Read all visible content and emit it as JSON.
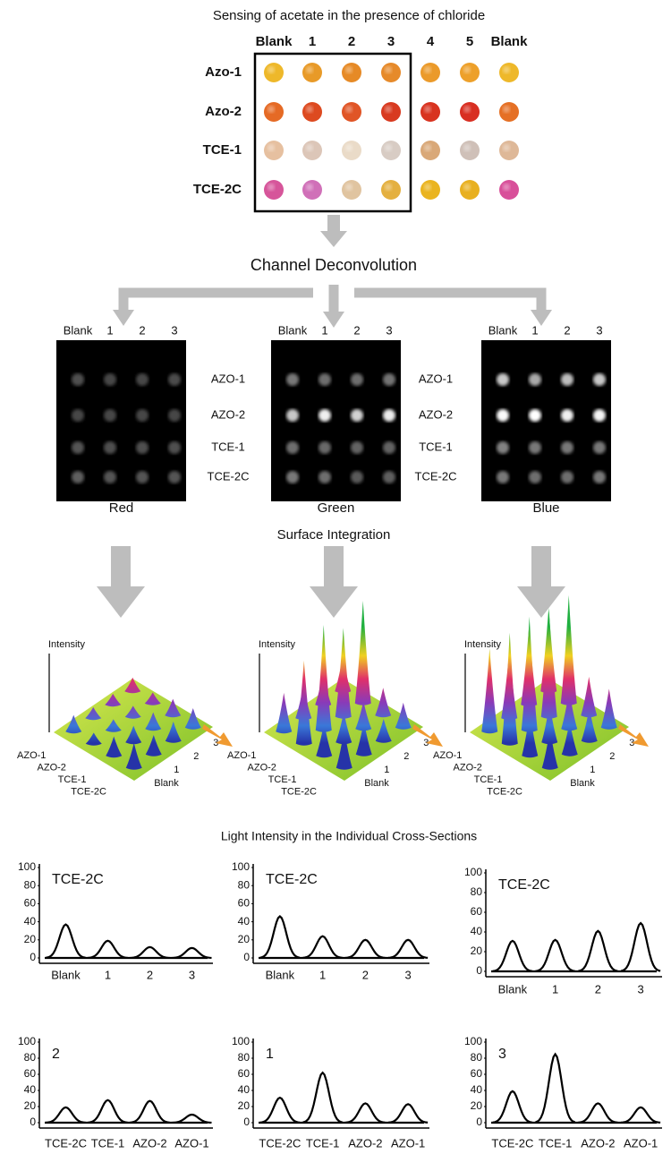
{
  "title": "Sensing of acetate in the presence of chloride",
  "plate": {
    "columns": [
      "Blank",
      "1",
      "2",
      "3",
      "4",
      "5",
      "Blank"
    ],
    "rows": [
      "Azo-1",
      "Azo-2",
      "TCE-1",
      "TCE-2C"
    ]
  },
  "step_1": "Channel Deconvolution",
  "channels": {
    "columns": [
      "Blank",
      "1",
      "2",
      "3"
    ],
    "rows": [
      "AZO-1",
      "AZO-2",
      "TCE-1",
      "TCE-2C"
    ],
    "names": [
      "Red",
      "Green",
      "Blue"
    ]
  },
  "step_2": "Surface Integration",
  "surface": {
    "axis_label": "Intensity",
    "rows": [
      "AZO-1",
      "AZO-2",
      "TCE-1",
      "TCE-2C"
    ],
    "columns": [
      "Blank",
      "1",
      "2",
      "3"
    ]
  },
  "section_title": "Light Intensity in the Individual Cross-Sections",
  "chart_data": [
    {
      "type": "line",
      "title": "TCE-2C",
      "categories": [
        "Blank",
        "1",
        "2",
        "3"
      ],
      "values": [
        37,
        19,
        12,
        11
      ],
      "color": "#000000",
      "ylim": [
        0,
        100
      ],
      "yticks": [
        0,
        20,
        40,
        60,
        80,
        100
      ]
    },
    {
      "type": "line",
      "title": "TCE-2C",
      "categories": [
        "Blank",
        "1",
        "2",
        "3"
      ],
      "values": [
        46,
        24,
        20,
        20
      ],
      "color": "#000000",
      "ylim": [
        0,
        100
      ],
      "yticks": [
        0,
        20,
        40,
        60,
        80,
        100
      ]
    },
    {
      "type": "line",
      "title": "TCE-2C",
      "categories": [
        "Blank",
        "1",
        "2",
        "3"
      ],
      "values": [
        31,
        32,
        41,
        49
      ],
      "color": "#000000",
      "ylim": [
        0,
        100
      ],
      "yticks": [
        0,
        20,
        40,
        60,
        80,
        100
      ]
    },
    {
      "type": "line",
      "title": "2",
      "categories": [
        "TCE-2C",
        "TCE-1",
        "AZO-2",
        "AZO-1"
      ],
      "values": [
        19,
        28,
        27,
        10
      ],
      "color": "#000000",
      "ylim": [
        0,
        100
      ],
      "yticks": [
        0,
        20,
        40,
        60,
        80,
        100
      ]
    },
    {
      "type": "line",
      "title": "1",
      "categories": [
        "TCE-2C",
        "TCE-1",
        "AZO-2",
        "AZO-1"
      ],
      "values": [
        31,
        62,
        24,
        23
      ],
      "color": "#000000",
      "ylim": [
        0,
        100
      ],
      "yticks": [
        0,
        20,
        40,
        60,
        80,
        100
      ]
    },
    {
      "type": "line",
      "title": "3",
      "categories": [
        "TCE-2C",
        "TCE-1",
        "AZO-2",
        "AZO-1"
      ],
      "values": [
        39,
        85,
        24,
        19
      ],
      "color": "#000000",
      "ylim": [
        0,
        100
      ],
      "yticks": [
        0,
        20,
        40,
        60,
        80,
        100
      ]
    }
  ]
}
